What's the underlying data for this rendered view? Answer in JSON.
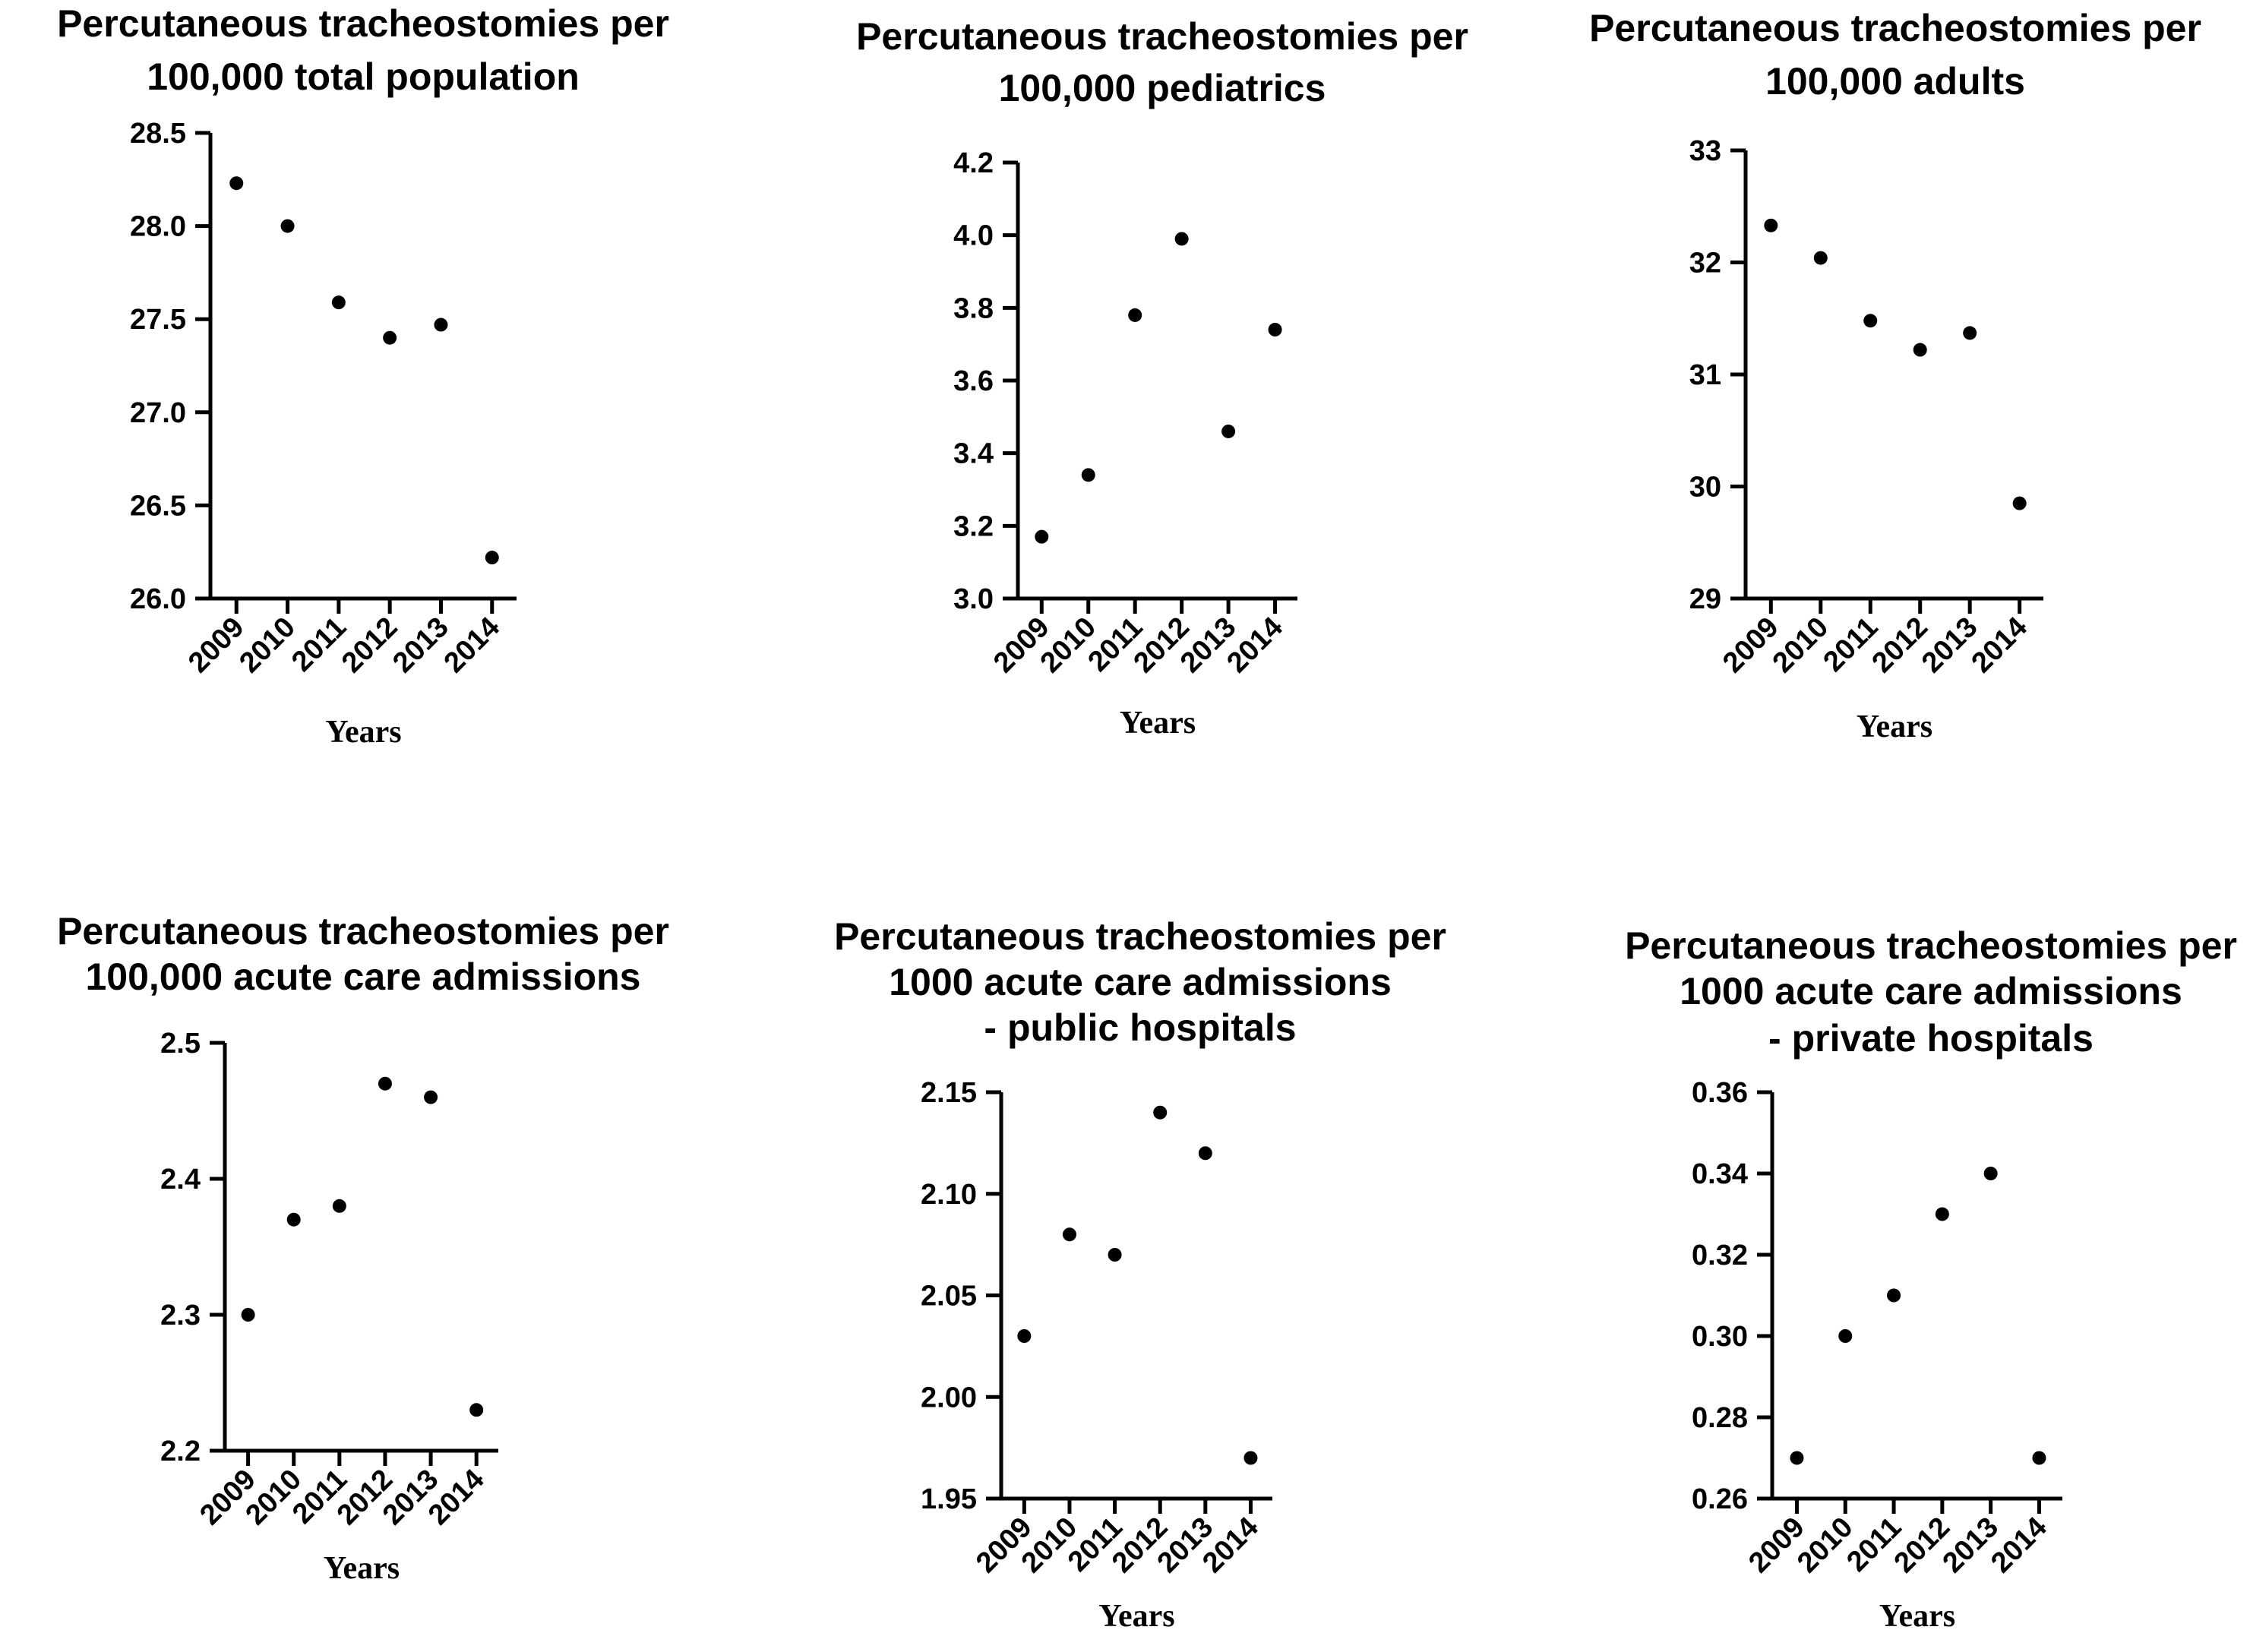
{
  "chart_data": [
    {
      "type": "scatter",
      "title": [
        "Percutaneous tracheostomies per",
        "100,000 total population"
      ],
      "xlabel": "Years",
      "ylabel": "",
      "categories": [
        "2009",
        "2010",
        "2011",
        "2012",
        "2013",
        "2014"
      ],
      "values": [
        28.23,
        28.0,
        27.59,
        27.4,
        27.47,
        26.22
      ],
      "ylim": [
        26.0,
        28.5
      ],
      "yticks": [
        "26.0",
        "26.5",
        "27.0",
        "27.5",
        "28.0",
        "28.5"
      ]
    },
    {
      "type": "scatter",
      "title": [
        "Percutaneous tracheostomies per",
        "100,000 pediatrics"
      ],
      "xlabel": "Years",
      "ylabel": "",
      "categories": [
        "2009",
        "2010",
        "2011",
        "2012",
        "2013",
        "2014"
      ],
      "values": [
        3.17,
        3.34,
        3.78,
        3.99,
        3.46,
        3.74
      ],
      "ylim": [
        3.0,
        4.2
      ],
      "yticks": [
        "3.0",
        "3.2",
        "3.4",
        "3.6",
        "3.8",
        "4.0",
        "4.2"
      ]
    },
    {
      "type": "scatter",
      "title": [
        "Percutaneous tracheostomies per",
        "100,000 adults"
      ],
      "xlabel": "Years",
      "ylabel": "",
      "categories": [
        "2009",
        "2010",
        "2011",
        "2012",
        "2013",
        "2014"
      ],
      "values": [
        32.33,
        32.04,
        31.48,
        31.22,
        31.37,
        29.85
      ],
      "ylim": [
        29,
        33
      ],
      "yticks": [
        "29",
        "30",
        "31",
        "32",
        "33"
      ]
    },
    {
      "type": "scatter",
      "title": [
        "Percutaneous tracheostomies per",
        "100,000 acute care admissions"
      ],
      "xlabel": "Years",
      "ylabel": "",
      "categories": [
        "2009",
        "2010",
        "2011",
        "2012",
        "2013",
        "2014"
      ],
      "values": [
        2.3,
        2.37,
        2.38,
        2.47,
        2.46,
        2.23
      ],
      "ylim": [
        2.2,
        2.5
      ],
      "yticks": [
        "2.2",
        "2.3",
        "2.4",
        "2.5"
      ]
    },
    {
      "type": "scatter",
      "title": [
        "Percutaneous tracheostomies per",
        "1000 acute care admissions",
        "- public hospitals"
      ],
      "xlabel": "Years",
      "ylabel": "",
      "categories": [
        "2009",
        "2010",
        "2011",
        "2012",
        "2013",
        "2014"
      ],
      "values": [
        2.03,
        2.08,
        2.07,
        2.14,
        2.12,
        1.97
      ],
      "ylim": [
        1.95,
        2.15
      ],
      "yticks": [
        "1.95",
        "2.00",
        "2.05",
        "2.10",
        "2.15"
      ]
    },
    {
      "type": "scatter",
      "title": [
        "Percutaneous tracheostomies per",
        "1000 acute care admissions",
        "- private hospitals"
      ],
      "xlabel": "Years",
      "ylabel": "",
      "categories": [
        "2009",
        "2010",
        "2011",
        "2012",
        "2013",
        "2014"
      ],
      "values": [
        0.27,
        0.3,
        0.31,
        0.33,
        0.34,
        0.27
      ],
      "ylim": [
        0.26,
        0.36
      ],
      "yticks": [
        "0.26",
        "0.28",
        "0.30",
        "0.32",
        "0.34",
        "0.36"
      ]
    }
  ]
}
